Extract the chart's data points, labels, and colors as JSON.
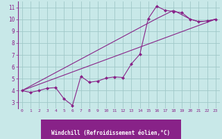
{
  "bg_color": "#c8e8e8",
  "grid_color": "#a0c8c8",
  "line_color": "#882288",
  "marker_color": "#882288",
  "xlabel": "Windchill (Refroidissement éolien,°C)",
  "xlabel_bg": "#882288",
  "xlabel_fg": "#ffffff",
  "tick_color": "#882288",
  "spine_color": "#882288",
  "xlim": [
    -0.5,
    23.5
  ],
  "ylim": [
    2.5,
    11.5
  ],
  "yticks": [
    3,
    4,
    5,
    6,
    7,
    8,
    9,
    10,
    11
  ],
  "xticks": [
    0,
    1,
    2,
    3,
    4,
    5,
    6,
    7,
    8,
    9,
    10,
    11,
    12,
    13,
    14,
    15,
    16,
    17,
    18,
    19,
    20,
    21,
    22,
    23
  ],
  "line1_x": [
    0,
    1,
    2,
    3,
    4,
    5,
    6,
    7,
    8,
    9,
    10,
    11,
    12,
    13,
    14,
    15,
    16,
    17,
    18,
    19,
    20,
    21,
    22,
    23
  ],
  "line1_y": [
    4.0,
    3.85,
    4.0,
    4.2,
    4.25,
    3.3,
    2.75,
    5.2,
    4.7,
    4.8,
    5.05,
    5.15,
    5.1,
    6.25,
    7.05,
    10.05,
    11.1,
    10.75,
    10.65,
    10.55,
    10.0,
    9.8,
    9.85,
    10.0
  ],
  "line2_x": [
    0,
    16,
    18,
    20,
    21,
    22,
    23
  ],
  "line2_y": [
    4.0,
    10.05,
    10.75,
    10.0,
    9.8,
    9.85,
    10.0
  ],
  "line3_x": [
    0,
    23
  ],
  "line3_y": [
    4.0,
    10.0
  ]
}
